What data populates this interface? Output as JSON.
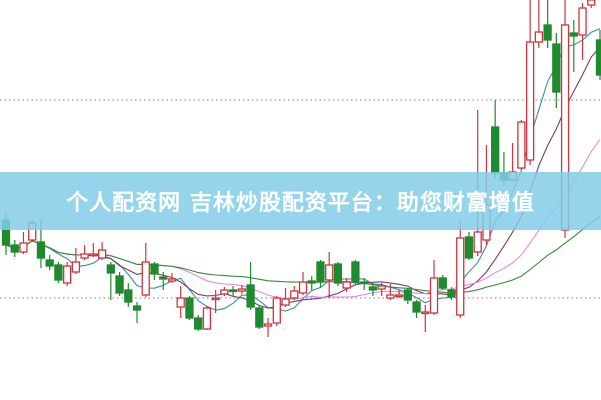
{
  "banner": {
    "title": "个人配资网 吉林炒股配资平台：助您财富增值"
  },
  "chart_data": {
    "type": "candlestick",
    "title": "",
    "xlabel": "",
    "ylabel": "",
    "ylim": [
      0,
      400
    ],
    "grid": "dotted horizontal reference lines",
    "legend": "none",
    "candle_fields": [
      "open",
      "high",
      "low",
      "close"
    ],
    "colors": {
      "up": "#d0343a",
      "down": "#1f8a2e",
      "banner": "#82cde8",
      "reference_line": "#999999"
    },
    "reference_levels": [
      300,
      102
    ],
    "moving_averages": [
      {
        "period": 5,
        "color": "#3a8fa0"
      },
      {
        "period": 10,
        "color": "#7a3a6a"
      },
      {
        "period": 20,
        "color": "#e38be0"
      },
      {
        "period": 40,
        "color": "#3a8a3a"
      }
    ],
    "candles": [
      [
        180,
        188,
        145,
        155
      ],
      [
        155,
        160,
        143,
        148
      ],
      [
        148,
        168,
        146,
        157
      ],
      [
        160,
        180,
        158,
        177
      ],
      [
        158,
        180,
        132,
        142
      ],
      [
        140,
        145,
        130,
        134
      ],
      [
        135,
        138,
        117,
        120
      ],
      [
        117,
        138,
        114,
        134
      ],
      [
        128,
        152,
        126,
        138
      ],
      [
        142,
        155,
        140,
        146
      ],
      [
        145,
        157,
        143,
        146
      ],
      [
        142,
        158,
        140,
        150
      ],
      [
        135,
        138,
        100,
        127
      ],
      [
        124,
        128,
        104,
        107
      ],
      [
        110,
        117,
        93,
        98
      ],
      [
        94,
        98,
        77,
        90
      ],
      [
        105,
        157,
        103,
        138
      ],
      [
        136,
        138,
        120,
        126
      ],
      [
        123,
        128,
        110,
        121
      ],
      [
        119,
        127,
        117,
        121
      ],
      [
        93,
        114,
        82,
        102
      ],
      [
        102,
        104,
        80,
        82
      ],
      [
        82,
        85,
        69,
        71
      ],
      [
        71,
        94,
        70,
        92
      ],
      [
        101,
        110,
        87,
        102
      ],
      [
        106,
        113,
        104,
        110
      ],
      [
        110,
        114,
        104,
        109
      ],
      [
        109,
        115,
        106,
        111
      ],
      [
        115,
        138,
        90,
        93
      ],
      [
        92,
        95,
        71,
        73
      ],
      [
        74,
        82,
        63,
        76
      ],
      [
        77,
        104,
        74,
        102
      ],
      [
        95,
        112,
        93,
        101
      ],
      [
        102,
        114,
        100,
        109
      ],
      [
        107,
        128,
        105,
        118
      ],
      [
        119,
        124,
        110,
        117
      ],
      [
        138,
        140,
        112,
        118
      ],
      [
        120,
        148,
        102,
        135
      ],
      [
        136,
        138,
        114,
        117
      ],
      [
        112,
        122,
        108,
        118
      ],
      [
        138,
        140,
        115,
        118
      ],
      [
        118,
        122,
        110,
        117
      ],
      [
        113,
        117,
        104,
        110
      ],
      [
        111,
        117,
        104,
        114
      ],
      [
        102,
        116,
        100,
        105
      ],
      [
        104,
        110,
        102,
        105
      ],
      [
        110,
        112,
        96,
        100
      ],
      [
        98,
        100,
        82,
        88
      ],
      [
        87,
        95,
        68,
        88
      ],
      [
        87,
        140,
        85,
        122
      ],
      [
        122,
        125,
        110,
        112
      ],
      [
        110,
        113,
        100,
        103
      ],
      [
        85,
        180,
        82,
        162
      ],
      [
        163,
        168,
        140,
        142
      ],
      [
        148,
        290,
        144,
        168
      ],
      [
        160,
        255,
        155,
        195
      ],
      [
        273,
        300,
        222,
        227
      ],
      [
        227,
        248,
        215,
        220
      ],
      [
        220,
        257,
        218,
        228
      ],
      [
        232,
        280,
        230,
        278
      ],
      [
        240,
        400,
        235,
        358
      ],
      [
        358,
        400,
        352,
        368
      ],
      [
        375,
        400,
        352,
        360
      ],
      [
        356,
        367,
        292,
        308
      ],
      [
        170,
        400,
        162,
        375
      ],
      [
        367,
        380,
        328,
        364
      ],
      [
        365,
        397,
        340,
        392
      ],
      [
        395,
        400,
        392,
        400
      ],
      [
        360,
        370,
        320,
        325
      ]
    ]
  }
}
